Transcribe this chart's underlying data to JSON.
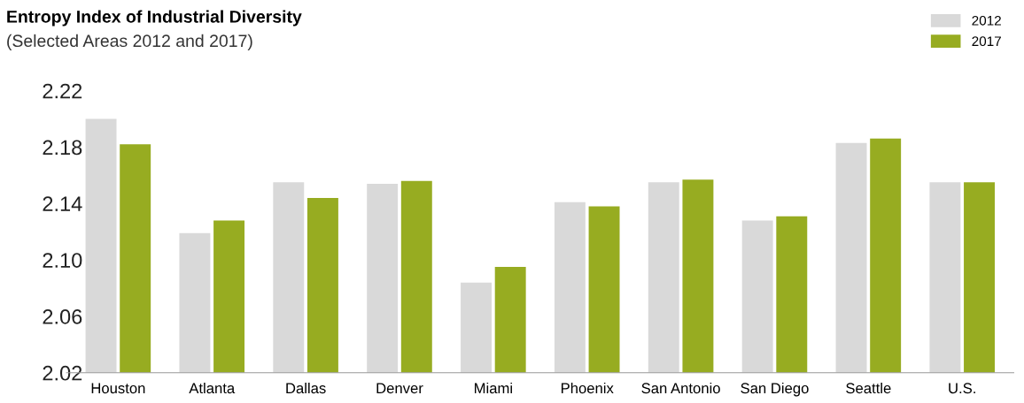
{
  "chart_data": {
    "type": "bar",
    "title": "Entropy Index of Industrial Diversity",
    "subtitle": "(Selected Areas 2012 and 2017)",
    "categories": [
      "Houston",
      "Atlanta",
      "Dallas",
      "Denver",
      "Miami",
      "Phoenix",
      "San Antonio",
      "San Diego",
      "Seattle",
      "U.S."
    ],
    "series": [
      {
        "name": "2012",
        "color": "#d9d9d9",
        "values": [
          2.2,
          2.119,
          2.155,
          2.154,
          2.084,
          2.141,
          2.155,
          2.128,
          2.183,
          2.155
        ]
      },
      {
        "name": "2017",
        "color": "#97ac21",
        "values": [
          2.182,
          2.128,
          2.144,
          2.156,
          2.095,
          2.138,
          2.157,
          2.131,
          2.186,
          2.155
        ]
      }
    ],
    "ylim": [
      2.02,
      2.22
    ],
    "yticks": [
      {
        "value": 2.02,
        "label": "2.02"
      },
      {
        "value": 2.06,
        "label": "2.06"
      },
      {
        "value": 2.1,
        "label": "2.10"
      },
      {
        "value": 2.14,
        "label": "2.14"
      },
      {
        "value": 2.18,
        "label": "2.18"
      },
      {
        "value": 2.22,
        "label": "2.22"
      }
    ],
    "grid": false,
    "legend": "top right"
  }
}
